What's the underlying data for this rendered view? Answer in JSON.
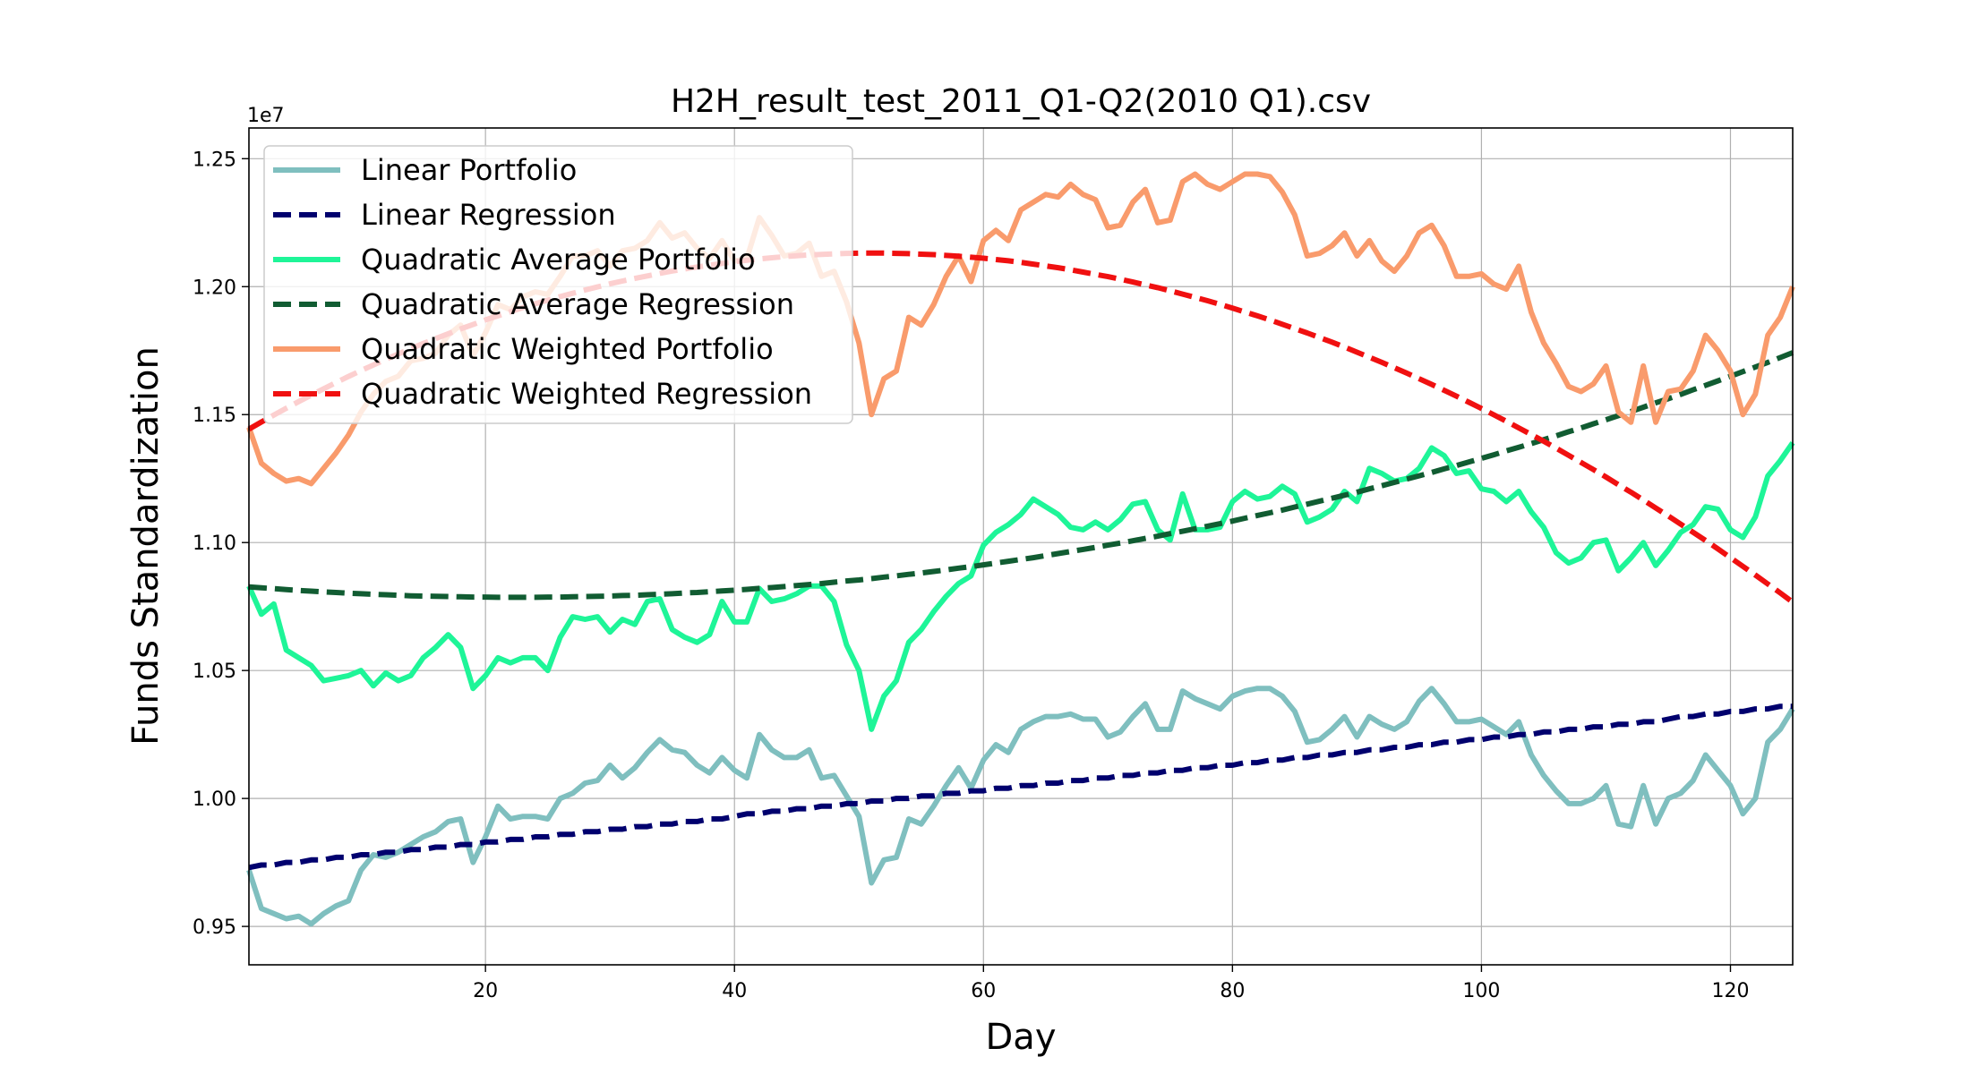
{
  "chart_data": {
    "type": "line",
    "title": "H2H_result_test_2011_Q1-Q2(2010 Q1).csv",
    "xlabel": "Day",
    "ylabel": "Funds Standardization",
    "y_offset_label": "1e7",
    "xlim": [
      1,
      125
    ],
    "ylim": [
      0.935,
      1.262
    ],
    "xticks": [
      20,
      40,
      60,
      80,
      100,
      120
    ],
    "yticks": [
      0.95,
      1.0,
      1.05,
      1.1,
      1.15,
      1.2,
      1.25
    ],
    "ytick_labels": [
      "0.95",
      "1.00",
      "1.05",
      "1.10",
      "1.15",
      "1.20",
      "1.25"
    ],
    "grid": true,
    "legend_position": "top-left",
    "x": [
      1,
      2,
      3,
      4,
      5,
      6,
      7,
      8,
      9,
      10,
      11,
      12,
      13,
      14,
      15,
      16,
      17,
      18,
      19,
      20,
      21,
      22,
      23,
      24,
      25,
      26,
      27,
      28,
      29,
      30,
      31,
      32,
      33,
      34,
      35,
      36,
      37,
      38,
      39,
      40,
      41,
      42,
      43,
      44,
      45,
      46,
      47,
      48,
      49,
      50,
      51,
      52,
      53,
      54,
      55,
      56,
      57,
      58,
      59,
      60,
      61,
      62,
      63,
      64,
      65,
      66,
      67,
      68,
      69,
      70,
      71,
      72,
      73,
      74,
      75,
      76,
      77,
      78,
      79,
      80,
      81,
      82,
      83,
      84,
      85,
      86,
      87,
      88,
      89,
      90,
      91,
      92,
      93,
      94,
      95,
      96,
      97,
      98,
      99,
      100,
      101,
      102,
      103,
      104,
      105,
      106,
      107,
      108,
      109,
      110,
      111,
      112,
      113,
      114,
      115,
      116,
      117,
      118,
      119,
      120,
      121,
      122,
      123,
      124,
      125
    ],
    "series": [
      {
        "name": "Linear Portfolio",
        "color": "#7fbfbf",
        "style": "solid",
        "values": [
          0.972,
          0.957,
          0.955,
          0.953,
          0.954,
          0.951,
          0.955,
          0.958,
          0.96,
          0.972,
          0.978,
          0.977,
          0.979,
          0.982,
          0.985,
          0.987,
          0.991,
          0.992,
          0.975,
          0.985,
          0.997,
          0.992,
          0.993,
          0.993,
          0.992,
          1.0,
          1.002,
          1.006,
          1.007,
          1.013,
          1.008,
          1.012,
          1.018,
          1.023,
          1.019,
          1.018,
          1.013,
          1.01,
          1.016,
          1.011,
          1.008,
          1.025,
          1.019,
          1.016,
          1.016,
          1.019,
          1.008,
          1.009,
          1.001,
          0.993,
          0.967,
          0.976,
          0.977,
          0.992,
          0.99,
          0.997,
          1.005,
          1.012,
          1.004,
          1.015,
          1.021,
          1.018,
          1.027,
          1.03,
          1.032,
          1.032,
          1.033,
          1.031,
          1.031,
          1.024,
          1.026,
          1.032,
          1.037,
          1.027,
          1.027,
          1.042,
          1.039,
          1.037,
          1.035,
          1.04,
          1.042,
          1.043,
          1.043,
          1.04,
          1.034,
          1.022,
          1.023,
          1.027,
          1.032,
          1.024,
          1.032,
          1.029,
          1.027,
          1.03,
          1.038,
          1.043,
          1.037,
          1.03,
          1.03,
          1.031,
          1.028,
          1.025,
          1.03,
          1.017,
          1.009,
          1.003,
          0.998,
          0.998,
          1.0,
          1.005,
          0.99,
          0.989,
          1.005,
          0.99,
          1.0,
          1.002,
          1.007,
          1.017,
          1.011,
          1.005,
          0.994,
          1.0,
          1.022,
          1.027,
          1.035
        ]
      },
      {
        "name": "Linear Regression",
        "color": "#00006e",
        "style": "dashed",
        "values": [
          0.973,
          0.974,
          0.974,
          0.975,
          0.975,
          0.976,
          0.976,
          0.977,
          0.977,
          0.978,
          0.978,
          0.979,
          0.979,
          0.98,
          0.98,
          0.981,
          0.981,
          0.982,
          0.982,
          0.983,
          0.983,
          0.984,
          0.984,
          0.985,
          0.985,
          0.986,
          0.986,
          0.987,
          0.987,
          0.988,
          0.988,
          0.989,
          0.989,
          0.99,
          0.99,
          0.991,
          0.991,
          0.992,
          0.992,
          0.993,
          0.994,
          0.994,
          0.995,
          0.995,
          0.996,
          0.996,
          0.997,
          0.997,
          0.998,
          0.998,
          0.999,
          0.999,
          1.0,
          1.0,
          1.001,
          1.001,
          1.002,
          1.002,
          1.003,
          1.003,
          1.004,
          1.004,
          1.005,
          1.005,
          1.006,
          1.006,
          1.007,
          1.007,
          1.008,
          1.008,
          1.009,
          1.009,
          1.01,
          1.01,
          1.011,
          1.011,
          1.012,
          1.012,
          1.013,
          1.013,
          1.014,
          1.014,
          1.015,
          1.015,
          1.016,
          1.016,
          1.017,
          1.017,
          1.018,
          1.018,
          1.019,
          1.019,
          1.02,
          1.02,
          1.021,
          1.021,
          1.022,
          1.022,
          1.023,
          1.023,
          1.024,
          1.024,
          1.025,
          1.025,
          1.026,
          1.026,
          1.027,
          1.027,
          1.028,
          1.028,
          1.029,
          1.029,
          1.03,
          1.03,
          1.031,
          1.032,
          1.032,
          1.033,
          1.033,
          1.034,
          1.034,
          1.035,
          1.035,
          1.036,
          1.036
        ]
      },
      {
        "name": "Quadratic Average Portfolio",
        "color": "#1ef598",
        "style": "solid",
        "values": [
          1.083,
          1.072,
          1.076,
          1.058,
          1.055,
          1.052,
          1.046,
          1.047,
          1.048,
          1.05,
          1.044,
          1.049,
          1.046,
          1.048,
          1.055,
          1.059,
          1.064,
          1.059,
          1.043,
          1.048,
          1.055,
          1.053,
          1.055,
          1.055,
          1.05,
          1.063,
          1.071,
          1.07,
          1.071,
          1.065,
          1.07,
          1.068,
          1.077,
          1.078,
          1.066,
          1.063,
          1.061,
          1.064,
          1.077,
          1.069,
          1.069,
          1.082,
          1.077,
          1.078,
          1.08,
          1.083,
          1.083,
          1.077,
          1.06,
          1.05,
          1.027,
          1.04,
          1.046,
          1.061,
          1.066,
          1.073,
          1.079,
          1.084,
          1.087,
          1.099,
          1.104,
          1.107,
          1.111,
          1.117,
          1.114,
          1.111,
          1.106,
          1.105,
          1.108,
          1.105,
          1.109,
          1.115,
          1.116,
          1.105,
          1.101,
          1.119,
          1.105,
          1.105,
          1.106,
          1.116,
          1.12,
          1.117,
          1.118,
          1.122,
          1.119,
          1.108,
          1.11,
          1.113,
          1.12,
          1.116,
          1.129,
          1.127,
          1.124,
          1.125,
          1.129,
          1.137,
          1.134,
          1.127,
          1.128,
          1.121,
          1.12,
          1.116,
          1.12,
          1.112,
          1.106,
          1.096,
          1.092,
          1.094,
          1.1,
          1.101,
          1.089,
          1.094,
          1.1,
          1.091,
          1.097,
          1.104,
          1.107,
          1.114,
          1.113,
          1.105,
          1.102,
          1.11,
          1.126,
          1.132,
          1.139
        ]
      },
      {
        "name": "Quadratic Average Regression",
        "color": "#115c32",
        "style": "dashed",
        "values": [
          1.0827,
          1.0823,
          1.082,
          1.0816,
          1.0813,
          1.081,
          1.0807,
          1.0805,
          1.0802,
          1.08,
          1.0798,
          1.0796,
          1.0794,
          1.0792,
          1.0791,
          1.079,
          1.0789,
          1.0788,
          1.0787,
          1.0787,
          1.0786,
          1.0786,
          1.0786,
          1.0786,
          1.0787,
          1.0787,
          1.0788,
          1.0789,
          1.079,
          1.0791,
          1.0793,
          1.0794,
          1.0796,
          1.0798,
          1.08,
          1.0803,
          1.0805,
          1.0808,
          1.0811,
          1.0814,
          1.0817,
          1.0821,
          1.0824,
          1.0828,
          1.0832,
          1.0836,
          1.084,
          1.0845,
          1.085,
          1.0854,
          1.0859,
          1.0865,
          1.087,
          1.0876,
          1.0881,
          1.0887,
          1.0893,
          1.09,
          1.0906,
          1.0913,
          1.092,
          1.0927,
          1.0934,
          1.0941,
          1.0949,
          1.0957,
          1.0965,
          1.0973,
          1.0981,
          1.099,
          1.0998,
          1.1007,
          1.1016,
          1.1025,
          1.1035,
          1.1044,
          1.1054,
          1.1064,
          1.1074,
          1.1084,
          1.1095,
          1.1106,
          1.1116,
          1.1127,
          1.1139,
          1.115,
          1.1162,
          1.1173,
          1.1185,
          1.1197,
          1.121,
          1.1222,
          1.1235,
          1.1248,
          1.1261,
          1.1274,
          1.1288,
          1.1301,
          1.1315,
          1.1329,
          1.1343,
          1.1358,
          1.1372,
          1.1387,
          1.1402,
          1.1417,
          1.1433,
          1.1448,
          1.1464,
          1.148,
          1.1496,
          1.1512,
          1.1529,
          1.1546,
          1.1562,
          1.1579,
          1.1597,
          1.1614,
          1.1632,
          1.165,
          1.1668,
          1.1686,
          1.1704,
          1.1723,
          1.1742
        ]
      },
      {
        "name": "Quadratic Weighted Portfolio",
        "color": "#f99b6c",
        "style": "solid",
        "values": [
          1.145,
          1.131,
          1.127,
          1.124,
          1.125,
          1.123,
          1.129,
          1.135,
          1.142,
          1.151,
          1.158,
          1.163,
          1.165,
          1.171,
          1.172,
          1.174,
          1.181,
          1.185,
          1.173,
          1.182,
          1.193,
          1.191,
          1.196,
          1.198,
          1.197,
          1.204,
          1.212,
          1.212,
          1.214,
          1.208,
          1.214,
          1.215,
          1.218,
          1.225,
          1.219,
          1.221,
          1.215,
          1.211,
          1.218,
          1.21,
          1.211,
          1.227,
          1.22,
          1.212,
          1.213,
          1.217,
          1.204,
          1.206,
          1.194,
          1.178,
          1.15,
          1.164,
          1.167,
          1.188,
          1.185,
          1.193,
          1.204,
          1.212,
          1.202,
          1.218,
          1.222,
          1.218,
          1.23,
          1.233,
          1.236,
          1.235,
          1.24,
          1.236,
          1.234,
          1.223,
          1.224,
          1.233,
          1.238,
          1.225,
          1.226,
          1.241,
          1.244,
          1.24,
          1.238,
          1.241,
          1.244,
          1.244,
          1.243,
          1.237,
          1.228,
          1.212,
          1.213,
          1.216,
          1.221,
          1.212,
          1.218,
          1.21,
          1.206,
          1.212,
          1.221,
          1.224,
          1.216,
          1.204,
          1.204,
          1.205,
          1.201,
          1.199,
          1.208,
          1.19,
          1.178,
          1.17,
          1.161,
          1.159,
          1.162,
          1.169,
          1.151,
          1.147,
          1.169,
          1.147,
          1.159,
          1.16,
          1.167,
          1.181,
          1.175,
          1.167,
          1.15,
          1.158,
          1.181,
          1.188,
          1.2
        ]
      },
      {
        "name": "Quadratic Weighted Regression",
        "color": "#f01010",
        "style": "dashed",
        "values": [
          1.1443,
          1.1471,
          1.1498,
          1.1525,
          1.1551,
          1.1576,
          1.1601,
          1.1625,
          1.1649,
          1.1672,
          1.1694,
          1.1716,
          1.1737,
          1.1758,
          1.1778,
          1.1797,
          1.1816,
          1.1835,
          1.1852,
          1.187,
          1.1886,
          1.1902,
          1.1918,
          1.1933,
          1.1947,
          1.1961,
          1.1974,
          1.1987,
          1.1999,
          1.2011,
          1.2022,
          1.2032,
          1.2042,
          1.2052,
          1.2061,
          1.2069,
          1.2077,
          1.2084,
          1.2091,
          1.2097,
          1.2103,
          1.2108,
          1.2113,
          1.2117,
          1.2121,
          1.2124,
          1.2126,
          1.2128,
          1.213,
          1.2131,
          1.2131,
          1.2131,
          1.213,
          1.2129,
          1.2127,
          1.2125,
          1.2122,
          1.2119,
          1.2115,
          1.2111,
          1.2106,
          1.2101,
          1.2095,
          1.2088,
          1.2081,
          1.2074,
          1.2066,
          1.2057,
          1.2048,
          1.2039,
          1.2029,
          1.2018,
          1.2007,
          1.1996,
          1.1984,
          1.1971,
          1.1958,
          1.1945,
          1.1931,
          1.1916,
          1.1901,
          1.1886,
          1.187,
          1.1853,
          1.1836,
          1.1819,
          1.1801,
          1.1783,
          1.1764,
          1.1744,
          1.1724,
          1.1704,
          1.1683,
          1.1662,
          1.164,
          1.1618,
          1.1595,
          1.1572,
          1.1548,
          1.1524,
          1.1499,
          1.1474,
          1.1448,
          1.1422,
          1.1396,
          1.1369,
          1.1341,
          1.1313,
          1.1285,
          1.1256,
          1.1226,
          1.1197,
          1.1166,
          1.1135,
          1.1104,
          1.1072,
          1.104,
          1.1008,
          1.0975,
          1.0941,
          1.0907,
          1.0873,
          1.0838,
          1.0803,
          1.0767
        ]
      }
    ]
  }
}
